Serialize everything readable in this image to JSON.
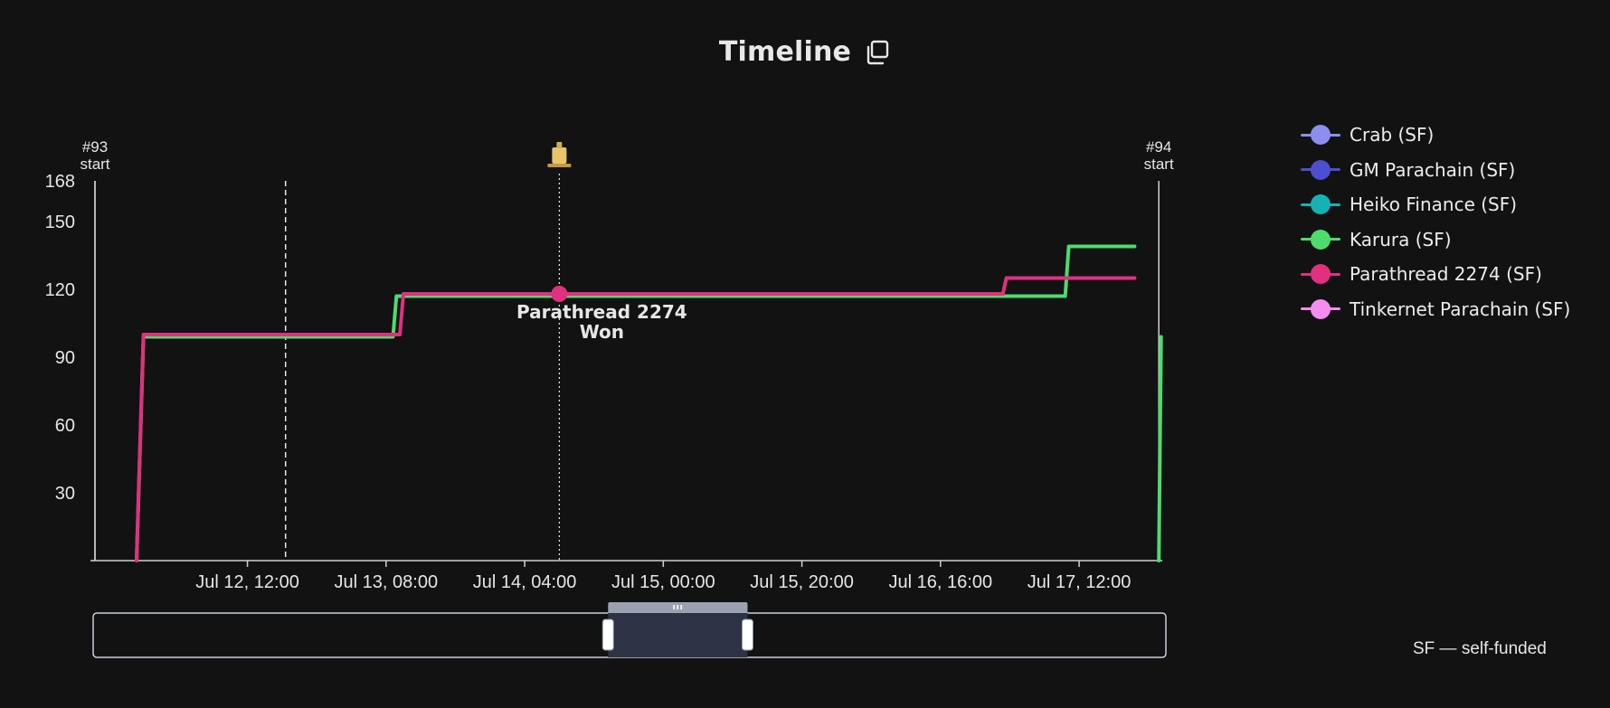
{
  "header": {
    "title": "Timeline",
    "copy_icon": "copy-icon"
  },
  "footnote": "SF — self-funded",
  "markers": [
    {
      "label_line1": "#93",
      "label_line2": "start",
      "x": "2024-07-11T14:00"
    },
    {
      "label_line1": "#94",
      "label_line2": "start",
      "x": "2024-07-17T23:30"
    }
  ],
  "events": {
    "dashed_line_x": "2024-07-12T17:30",
    "winner_x": "2024-07-14T09:00",
    "winner_y": 118,
    "winner_label_line1": "Parathread 2274",
    "winner_label_line2": "Won",
    "winner_icon": "auction-gavel-icon"
  },
  "chart_data": {
    "type": "line",
    "title": "Timeline",
    "xlabel": "",
    "ylabel": "",
    "x_type": "datetime",
    "xlim": [
      "2024-07-11T14:00",
      "2024-07-18T00:00"
    ],
    "ylim": [
      0,
      168
    ],
    "y_ticks": [
      30,
      60,
      90,
      120,
      150,
      168
    ],
    "x_ticks": [
      {
        "label": "Jul 12, 12:00",
        "x": "2024-07-12T12:00"
      },
      {
        "label": "Jul 13, 08:00",
        "x": "2024-07-13T08:00"
      },
      {
        "label": "Jul 14, 04:00",
        "x": "2024-07-14T04:00"
      },
      {
        "label": "Jul 15, 00:00",
        "x": "2024-07-15T00:00"
      },
      {
        "label": "Jul 15, 20:00",
        "x": "2024-07-15T20:00"
      },
      {
        "label": "Jul 16, 16:00",
        "x": "2024-07-16T16:00"
      },
      {
        "label": "Jul 17, 12:00",
        "x": "2024-07-17T12:00"
      }
    ],
    "grid": false,
    "legend_position": "right",
    "series": [
      {
        "name": "Crab (SF)",
        "color": "#8b8ff0",
        "points": []
      },
      {
        "name": "GM Parachain (SF)",
        "color": "#4b4fd0",
        "points": []
      },
      {
        "name": "Heiko Finance (SF)",
        "color": "#14b3b3",
        "points": []
      },
      {
        "name": "Karura (SF)",
        "color": "#4ddb6e",
        "points": [
          [
            "2024-07-11T20:00",
            0
          ],
          [
            "2024-07-11T21:00",
            99
          ],
          [
            "2024-07-13T09:00",
            99
          ],
          [
            "2024-07-13T09:30",
            117
          ],
          [
            "2024-07-17T10:00",
            117
          ],
          [
            "2024-07-17T10:30",
            139
          ],
          [
            "2024-07-17T20:00",
            139
          ]
        ]
      },
      {
        "name": "Parathread 2274 (SF)",
        "color": "#e0307f",
        "points": [
          [
            "2024-07-11T20:00",
            0
          ],
          [
            "2024-07-11T21:00",
            100
          ],
          [
            "2024-07-13T10:00",
            100
          ],
          [
            "2024-07-13T10:30",
            118
          ],
          [
            "2024-07-17T01:00",
            118
          ],
          [
            "2024-07-17T01:30",
            125
          ],
          [
            "2024-07-17T20:00",
            125
          ]
        ]
      },
      {
        "name": "Tinkernet Parachain (SF)",
        "color": "#f58cf0",
        "points": []
      },
      {
        "name": "Karura (SF)",
        "color": "#4ddb6e",
        "hide_in_legend": true,
        "points": [
          [
            "2024-07-17T23:30",
            0
          ],
          [
            "2024-07-17T23:50",
            99
          ]
        ]
      }
    ]
  },
  "zoom": {
    "window_start": 0.48,
    "window_end": 0.61,
    "handle_icon": "grip-icon"
  }
}
